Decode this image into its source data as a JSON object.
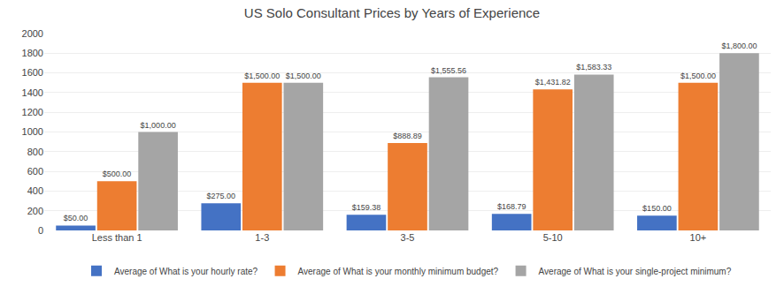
{
  "chart_data": {
    "type": "bar",
    "title": "US Solo Consultant Prices by Years of Experience",
    "categories": [
      "Less than 1",
      "1-3",
      "3-5",
      "5-10",
      "10+"
    ],
    "series": [
      {
        "name": "Average of What is your hourly rate?",
        "color": "#4472C4",
        "values": [
          50.0,
          275.0,
          159.38,
          168.79,
          150.0
        ],
        "value_labels": [
          "$50.00",
          "$275.00",
          "$159.38",
          "$168.79",
          "$150.00"
        ]
      },
      {
        "name": "Average of What is your monthly minimum budget?",
        "color": "#ED7D31",
        "values": [
          500.0,
          1500.0,
          888.89,
          1431.82,
          1500.0
        ],
        "value_labels": [
          "$500.00",
          "$1,500.00",
          "$888.89",
          "$1,431.82",
          "$1,500.00"
        ]
      },
      {
        "name": "Average of What is your single-project minimum?",
        "color": "#A5A5A5",
        "values": [
          1000.0,
          1500.0,
          1555.56,
          1583.33,
          1800.0
        ],
        "value_labels": [
          "$1,000.00",
          "$1,500.00",
          "$1,555.56",
          "$1,583.33",
          "$1,800.00"
        ]
      }
    ],
    "ylim": [
      0,
      2000
    ],
    "yticks": [
      0,
      200,
      400,
      600,
      800,
      1000,
      1200,
      1400,
      1600,
      1800,
      2000
    ],
    "grid": true,
    "legend": "bottom",
    "data_labels": true
  }
}
